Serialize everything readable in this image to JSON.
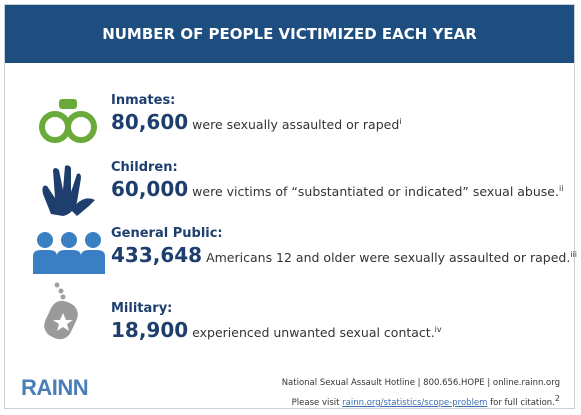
{
  "header": {
    "title": "NUMBER OF PEOPLE VICTIMIZED EACH YEAR"
  },
  "rows": [
    {
      "label": "Inmates:",
      "number": "80,600",
      "text": "were sexually assaulted or raped",
      "note": "i"
    },
    {
      "label": "Children:",
      "number": "60,000",
      "text": "were victims of “substantiated or indicated” sexual abuse.",
      "note": "ii"
    },
    {
      "label": "General Public:",
      "number": "433,648",
      "text": "Americans 12 and older were sexually assaulted or raped.",
      "note": "iii"
    },
    {
      "label": "Military:",
      "number": "18,900",
      "text": "experienced unwanted sexual contact.",
      "note": "iv"
    }
  ],
  "footer": {
    "logo": "RAINN",
    "hotline": "National Sexual Assault Hotline | 800.656.HOPE | online.rainn.org",
    "citation_prefix": "Please visit",
    "citation_link": "rainn.org/statistics/scope-problem",
    "citation_suffix": "for full citation.",
    "citation_note": "2"
  }
}
